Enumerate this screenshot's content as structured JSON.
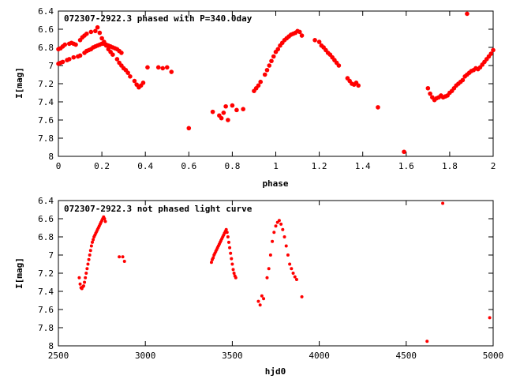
{
  "chart_data": [
    {
      "type": "scatter",
      "title": "072307-2922.3 phased with P=340.0day",
      "xlabel": "phase",
      "ylabel": "I[mag]",
      "xlim": [
        0,
        2
      ],
      "ylim": [
        6.4,
        8.0
      ],
      "y_inverted": true,
      "x_ticks": [
        0,
        0.2,
        0.4,
        0.6,
        0.8,
        1,
        1.2,
        1.4,
        1.6,
        1.8,
        2
      ],
      "x_tick_labels": [
        "0",
        "0.2",
        "0.4",
        "0.6",
        "0.8",
        "1",
        "1.2",
        "1.4",
        "1.6",
        "1.8",
        "2"
      ],
      "y_ticks": [
        6.4,
        6.6,
        6.8,
        7.0,
        7.2,
        7.4,
        7.6,
        7.8,
        8.0
      ],
      "y_tick_labels": [
        "6.4",
        "6.6",
        "6.8",
        "7",
        "7.2",
        "7.4",
        "7.6",
        "7.8",
        "8"
      ],
      "marker_color": "#ff0000",
      "series": [
        {
          "x": [
            0.0,
            0.01,
            0.02,
            0.03,
            0.05,
            0.06,
            0.07,
            0.08,
            0.1,
            0.11,
            0.12,
            0.13,
            0.15,
            0.17,
            0.18,
            0.19,
            0.2,
            0.21,
            0.22,
            0.23,
            0.24,
            0.25,
            0.27,
            0.28,
            0.29,
            0.3,
            0.31,
            0.32,
            0.33,
            0.35,
            0.36,
            0.37,
            0.38,
            0.39,
            0.0,
            0.01,
            0.02,
            0.04,
            0.05,
            0.07,
            0.09,
            0.1,
            0.12,
            0.13,
            0.14,
            0.15,
            0.16,
            0.17,
            0.18,
            0.19,
            0.2,
            0.21,
            0.22,
            0.23,
            0.24,
            0.25,
            0.26,
            0.27,
            0.28,
            0.29,
            0.41,
            0.46,
            0.48,
            0.5,
            0.52,
            0.6,
            0.71,
            0.74,
            0.75,
            0.76,
            0.77,
            0.78,
            0.8,
            0.82,
            0.85,
            0.9,
            0.91,
            0.92,
            0.93,
            0.95,
            0.96,
            0.97,
            0.98,
            0.99,
            1.0,
            1.01,
            1.02,
            1.03,
            1.04,
            1.05,
            1.06,
            1.07,
            1.08,
            1.09,
            1.1,
            1.11,
            1.12,
            1.18,
            1.2,
            1.21,
            1.22,
            1.23,
            1.24,
            1.25,
            1.26,
            1.27,
            1.28,
            1.29,
            1.33,
            1.34,
            1.35,
            1.36,
            1.37,
            1.38,
            1.47,
            1.59,
            1.7,
            1.71,
            1.72,
            1.73,
            1.74,
            1.75,
            1.76,
            1.77,
            1.78,
            1.79,
            1.8,
            1.81,
            1.82,
            1.83,
            1.84,
            1.85,
            1.86,
            1.87,
            1.88,
            1.89,
            1.9,
            1.91,
            1.92,
            1.93,
            1.94,
            1.95,
            1.96,
            1.97,
            1.98,
            1.99,
            2.0,
            1.88
          ],
          "y": [
            6.82,
            6.81,
            6.79,
            6.77,
            6.76,
            6.75,
            6.76,
            6.77,
            6.72,
            6.69,
            6.67,
            6.65,
            6.63,
            6.62,
            6.58,
            6.64,
            6.7,
            6.74,
            6.78,
            6.82,
            6.85,
            6.88,
            6.93,
            6.97,
            7.0,
            7.03,
            7.05,
            7.08,
            7.12,
            7.17,
            7.21,
            7.24,
            7.22,
            7.19,
            6.98,
            6.97,
            6.96,
            6.94,
            6.93,
            6.91,
            6.9,
            6.89,
            6.86,
            6.84,
            6.83,
            6.82,
            6.8,
            6.79,
            6.78,
            6.77,
            6.76,
            6.76,
            6.77,
            6.78,
            6.79,
            6.8,
            6.81,
            6.82,
            6.84,
            6.86,
            7.02,
            7.02,
            7.03,
            7.02,
            7.07,
            7.69,
            7.51,
            7.55,
            7.58,
            7.52,
            7.45,
            7.6,
            7.44,
            7.49,
            7.48,
            7.28,
            7.25,
            7.22,
            7.18,
            7.1,
            7.05,
            7.0,
            6.95,
            6.9,
            6.85,
            6.82,
            6.78,
            6.75,
            6.72,
            6.7,
            6.68,
            6.66,
            6.65,
            6.64,
            6.62,
            6.63,
            6.67,
            6.72,
            6.74,
            6.78,
            6.8,
            6.83,
            6.86,
            6.88,
            6.91,
            6.94,
            6.97,
            7.0,
            7.14,
            7.17,
            7.2,
            7.21,
            7.19,
            7.22,
            7.46,
            7.95,
            7.25,
            7.31,
            7.35,
            7.38,
            7.36,
            7.35,
            7.33,
            7.35,
            7.34,
            7.33,
            7.3,
            7.28,
            7.25,
            7.22,
            7.2,
            7.18,
            7.16,
            7.12,
            7.1,
            7.08,
            7.06,
            7.05,
            7.03,
            7.04,
            7.02,
            6.99,
            6.96,
            6.93,
            6.9,
            6.87,
            6.83,
            6.43
          ]
        }
      ]
    },
    {
      "type": "scatter",
      "title": "072307-2922.3 not phased light curve",
      "xlabel": "hjd0",
      "ylabel": "I[mag]",
      "xlim": [
        2500,
        5000
      ],
      "ylim": [
        6.4,
        8.0
      ],
      "y_inverted": true,
      "x_ticks": [
        2500,
        3000,
        3500,
        4000,
        4500,
        5000
      ],
      "x_tick_labels": [
        "2500",
        "3000",
        "3500",
        "4000",
        "4500",
        "5000"
      ],
      "y_ticks": [
        6.4,
        6.6,
        6.8,
        7.0,
        7.2,
        7.4,
        7.6,
        7.8,
        8.0
      ],
      "y_tick_labels": [
        "6.4",
        "6.6",
        "6.8",
        "7",
        "7.2",
        "7.4",
        "7.6",
        "7.8",
        "8"
      ],
      "marker_color": "#ff0000",
      "series": [
        {
          "x": [
            2620,
            2625,
            2630,
            2635,
            2640,
            2645,
            2650,
            2655,
            2660,
            2665,
            2670,
            2675,
            2680,
            2685,
            2690,
            2695,
            2700,
            2705,
            2710,
            2715,
            2720,
            2725,
            2730,
            2735,
            2740,
            2745,
            2750,
            2755,
            2760,
            2765,
            2770,
            2850,
            2870,
            2880,
            3380,
            3385,
            3390,
            3395,
            3400,
            3405,
            3410,
            3415,
            3420,
            3425,
            3430,
            3435,
            3440,
            3445,
            3450,
            3455,
            3460,
            3465,
            3470,
            3475,
            3480,
            3485,
            3490,
            3495,
            3500,
            3505,
            3510,
            3515,
            3520,
            3650,
            3660,
            3670,
            3680,
            3700,
            3710,
            3720,
            3730,
            3740,
            3750,
            3760,
            3770,
            3780,
            3790,
            3800,
            3810,
            3820,
            3830,
            3840,
            3850,
            3860,
            3870,
            3900,
            4620,
            4710,
            4980
          ],
          "y": [
            7.25,
            7.32,
            7.36,
            7.37,
            7.35,
            7.34,
            7.3,
            7.25,
            7.2,
            7.15,
            7.1,
            7.05,
            7.0,
            6.95,
            6.9,
            6.86,
            6.83,
            6.8,
            6.78,
            6.76,
            6.74,
            6.72,
            6.7,
            6.68,
            6.66,
            6.64,
            6.62,
            6.6,
            6.58,
            6.6,
            6.63,
            7.02,
            7.02,
            7.07,
            7.08,
            7.05,
            7.03,
            7.0,
            6.98,
            6.96,
            6.94,
            6.92,
            6.9,
            6.88,
            6.86,
            6.84,
            6.82,
            6.8,
            6.78,
            6.76,
            6.74,
            6.72,
            6.75,
            6.8,
            6.86,
            6.92,
            6.98,
            7.04,
            7.1,
            7.16,
            7.2,
            7.23,
            7.25,
            7.51,
            7.55,
            7.45,
            7.48,
            7.25,
            7.15,
            7.0,
            6.85,
            6.75,
            6.68,
            6.64,
            6.62,
            6.66,
            6.72,
            6.8,
            6.9,
            7.0,
            7.1,
            7.15,
            7.2,
            7.24,
            7.27,
            7.46,
            7.95,
            6.43,
            7.69
          ]
        }
      ]
    }
  ]
}
